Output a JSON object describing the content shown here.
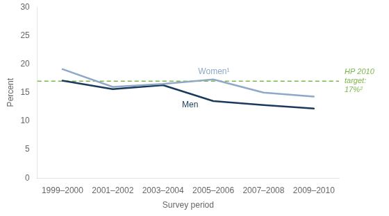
{
  "chart_data": {
    "type": "line",
    "xlabel": "Survey period",
    "ylabel": "Percent",
    "categories": [
      "1999–2000",
      "2001–2002",
      "2003–2004",
      "2005–2006",
      "2007–2008",
      "2009–2010"
    ],
    "series": [
      {
        "name": "Women¹",
        "color": "#8fa8c8",
        "values": [
          19.1,
          16.0,
          16.5,
          17.3,
          15.0,
          14.3
        ]
      },
      {
        "name": "Men",
        "color": "#1a3a5c",
        "values": [
          17.1,
          15.6,
          16.3,
          13.5,
          12.8,
          12.2
        ]
      }
    ],
    "reference_line": {
      "value": 17.0,
      "label": "HP 2010\ntarget:\n17%²",
      "color": "#7ab648",
      "line_style": "dashed"
    },
    "ylim": [
      0,
      30
    ],
    "yticks": [
      0,
      5,
      10,
      15,
      20,
      25,
      30
    ],
    "grid": false
  }
}
